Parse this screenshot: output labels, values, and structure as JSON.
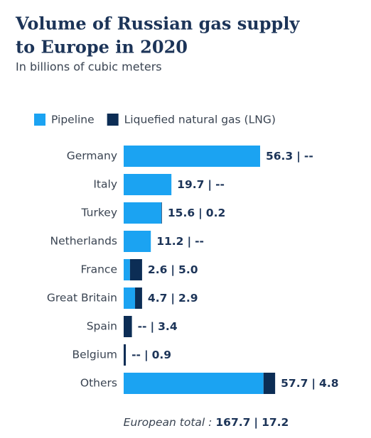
{
  "chart_data": {
    "type": "stacked_bar_horizontal",
    "title_lines": [
      "Volume of Russian gas supply",
      "to Europe in 2020"
    ],
    "subtitle": "In billions of cubic meters",
    "categories": [
      "Germany",
      "Italy",
      "Turkey",
      "Netherlands",
      "France",
      "Great Britain",
      "Spain",
      "Belgium",
      "Others"
    ],
    "series": [
      {
        "name": "Pipeline",
        "color": "#1ba3f2",
        "values": [
          56.3,
          19.7,
          15.6,
          11.2,
          2.6,
          4.7,
          null,
          null,
          57.7
        ],
        "value_labels": [
          "56.3",
          "19.7",
          "15.6",
          "11.2",
          "2.6",
          "4.7",
          "--",
          "--",
          "57.7"
        ]
      },
      {
        "name": "Liquefied natural gas (LNG)",
        "color": "#0c2d55",
        "values": [
          null,
          null,
          0.2,
          null,
          5.0,
          2.9,
          3.4,
          0.9,
          4.8
        ],
        "value_labels": [
          "--",
          "--",
          "0.2",
          "--",
          "5.0",
          "2.9",
          "3.4",
          "0.9",
          "4.8"
        ]
      }
    ],
    "label_separator": "|",
    "total_label": "European total :",
    "totals": [
      167.7,
      17.2
    ],
    "legend": "top-left"
  }
}
